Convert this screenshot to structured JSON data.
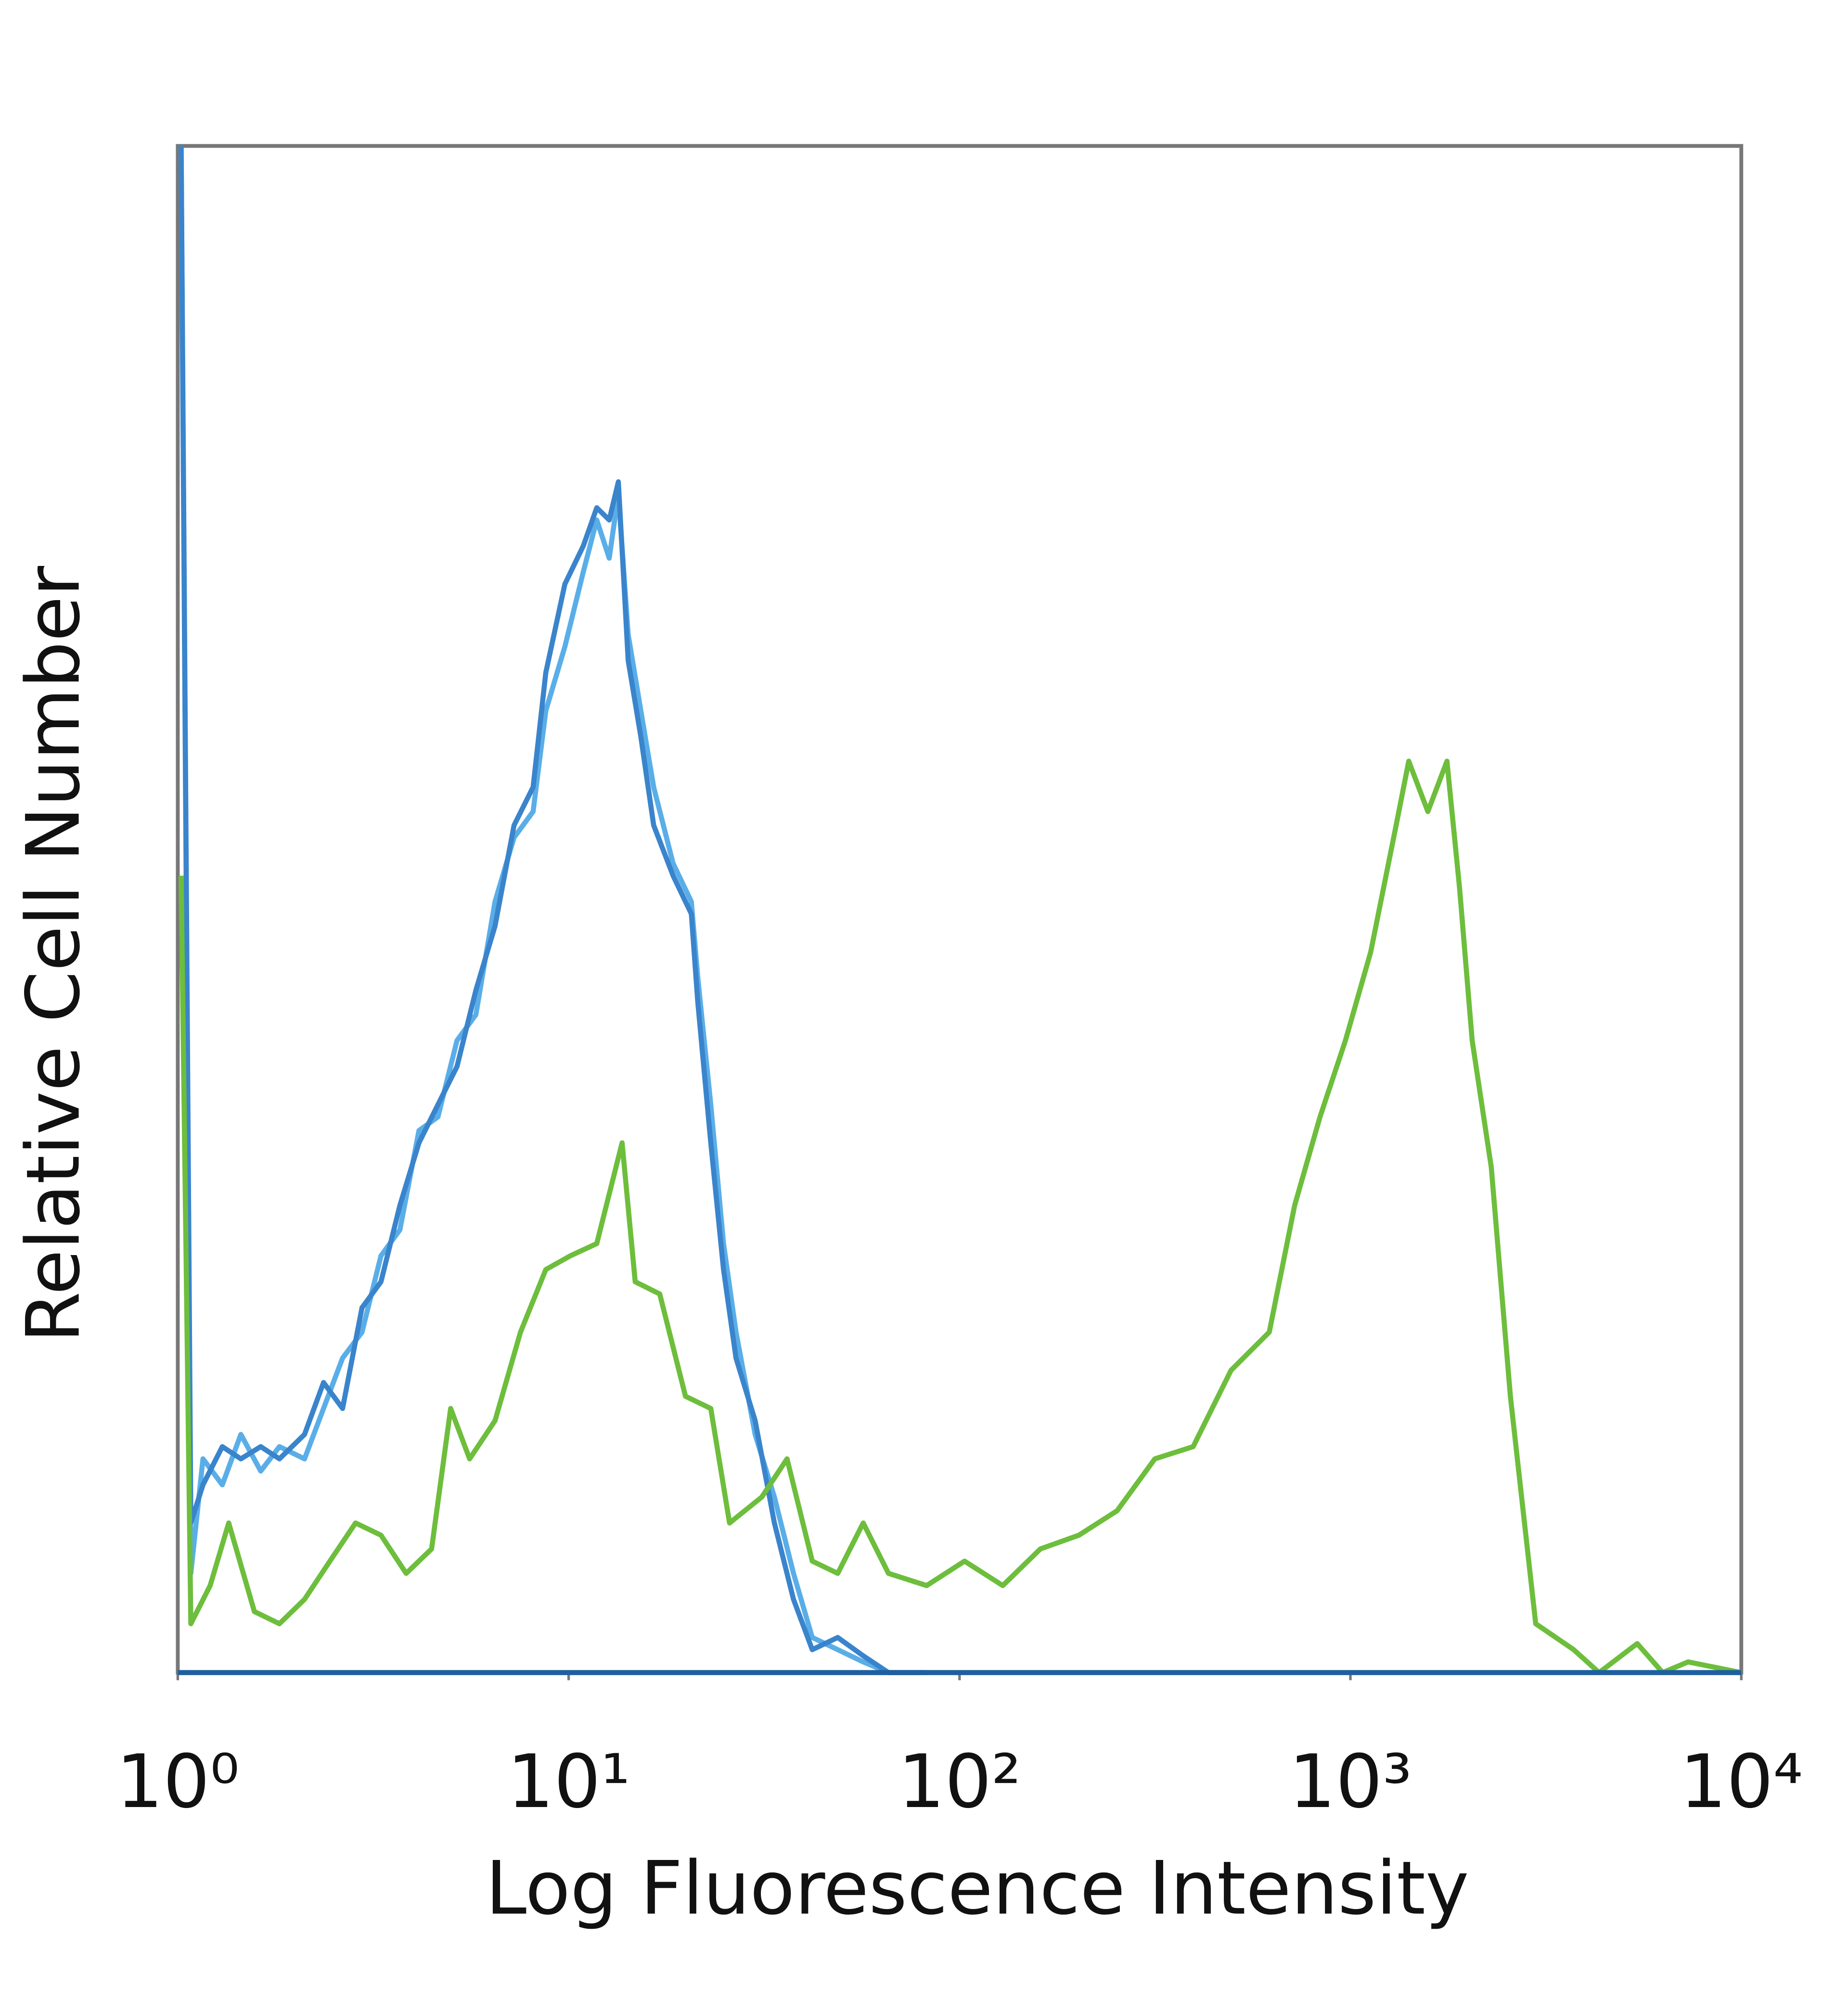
{
  "chart_data": {
    "type": "line",
    "x_label": "Log Fluorescence Intensity",
    "y_label": "Relative Cell Number",
    "xscale": "log",
    "xlim": [
      1,
      10000
    ],
    "ylim": [
      0,
      100
    ],
    "xticks": [
      {
        "value": 1,
        "label": "10⁰"
      },
      {
        "value": 10,
        "label": "10¹"
      },
      {
        "value": 100,
        "label": "10²"
      },
      {
        "value": 1000,
        "label": "10³"
      },
      {
        "value": 10000,
        "label": "10⁴"
      }
    ],
    "series": [
      {
        "color": "#5aaee8",
        "x": [
          1.02,
          1.08,
          1.16,
          1.3,
          1.45,
          1.63,
          1.82,
          2.11,
          2.36,
          2.64,
          2.96,
          3.31,
          3.7,
          4.14,
          4.63,
          5.18,
          5.79,
          6.48,
          7.25,
          8.11,
          8.74,
          9.78,
          10.9,
          11.8,
          12.7,
          13.4,
          14.2,
          15.3,
          16.5,
          18.5,
          20.6,
          21.4,
          23.1,
          24.9,
          26.8,
          30.0,
          33.6,
          37.6,
          42.0,
          48.8,
          56.7,
          65.8,
          82.4
        ],
        "values": [
          100,
          6.5,
          14.0,
          12.3,
          15.6,
          13.2,
          14.8,
          14.0,
          17.3,
          20.6,
          22.3,
          27.3,
          29.0,
          35.5,
          36.4,
          41.4,
          43.1,
          50.5,
          54.7,
          56.4,
          63.0,
          67.2,
          72.1,
          75.5,
          73.0,
          77.2,
          68.0,
          63.0,
          58.0,
          53.0,
          50.5,
          45.5,
          37.2,
          28.1,
          22.3,
          15.6,
          11.5,
          6.5,
          2.3,
          1.5,
          0.7,
          0,
          0
        ]
      },
      {
        "color": "#3a84cc",
        "x": [
          1.02,
          1.08,
          1.16,
          1.3,
          1.45,
          1.63,
          1.82,
          2.11,
          2.36,
          2.64,
          2.96,
          3.31,
          3.7,
          4.14,
          4.63,
          5.18,
          5.79,
          6.48,
          7.25,
          8.11,
          8.74,
          9.78,
          10.9,
          11.8,
          12.7,
          13.4,
          14.2,
          15.3,
          16.5,
          18.5,
          20.6,
          21.4,
          23.1,
          24.9,
          26.8,
          30.0,
          33.6,
          37.6,
          42.0,
          48.8,
          56.7,
          65.8,
          82.4
        ],
        "values": [
          100,
          9.8,
          12.3,
          14.8,
          14.0,
          14.8,
          14.0,
          15.6,
          19.0,
          17.3,
          23.9,
          25.6,
          30.6,
          34.7,
          37.2,
          39.7,
          44.7,
          48.9,
          55.5,
          58.0,
          65.5,
          71.3,
          73.8,
          76.3,
          75.5,
          78.0,
          66.3,
          61.3,
          55.5,
          52.2,
          49.7,
          43.9,
          34.7,
          26.4,
          20.6,
          16.5,
          9.8,
          4.8,
          1.5,
          2.3,
          1.1,
          0,
          0
        ]
      },
      {
        "color": "#6dbe3c",
        "x": [
          1.02,
          1.08,
          1.21,
          1.35,
          1.57,
          1.82,
          2.11,
          2.45,
          2.85,
          3.31,
          3.84,
          4.46,
          4.99,
          5.58,
          6.48,
          7.53,
          8.74,
          10.1,
          11.8,
          13.7,
          14.8,
          17.1,
          19.9,
          23.1,
          25.8,
          31.2,
          36.2,
          42.0,
          48.8,
          56.7,
          65.8,
          82.4,
          103,
          129,
          161,
          202,
          253,
          316,
          396,
          495,
          620,
          720,
          836,
          971,
          1127,
          1309,
          1410,
          1578,
          1766,
          1902,
          2049,
          2293,
          2566,
          2979,
          3726,
          4327,
          5417,
          6293,
          7311,
          10000
        ],
        "values": [
          52.2,
          3.2,
          5.7,
          9.8,
          4.0,
          3.2,
          4.8,
          7.3,
          9.8,
          9.0,
          6.5,
          8.1,
          17.3,
          14.0,
          16.5,
          22.3,
          26.4,
          27.3,
          28.1,
          34.7,
          25.6,
          24.8,
          18.1,
          17.3,
          9.8,
          11.5,
          14.0,
          7.3,
          6.5,
          9.8,
          6.5,
          5.7,
          7.3,
          5.7,
          8.1,
          9.0,
          10.6,
          14.0,
          14.8,
          19.8,
          22.3,
          30.6,
          36.4,
          41.4,
          47.2,
          55.5,
          59.7,
          56.4,
          59.7,
          51.4,
          41.4,
          33.1,
          18.1,
          3.2,
          1.5,
          0,
          1.9,
          0,
          0.7,
          0
        ]
      }
    ]
  }
}
